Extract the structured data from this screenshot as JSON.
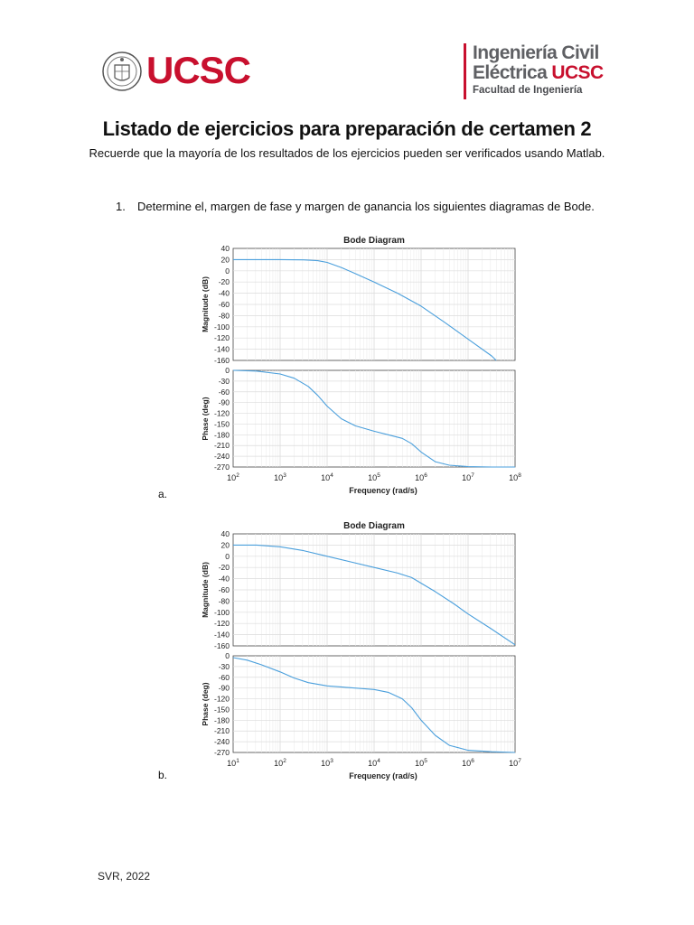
{
  "header": {
    "left_logo_text": "UCSC",
    "right_brand_line1": "Ingeniería Civil",
    "right_brand_line2a": "Eléctrica",
    "right_brand_line2b": "UCSC",
    "right_brand_line3": "Facultad de Ingeniería"
  },
  "colors": {
    "brand_red": "#c8102e",
    "brand_gray": "#5f6064",
    "curve": "#4a9fdc",
    "grid": "#dddddd"
  },
  "document": {
    "title": "Listado de ejercicios para preparación de certamen 2",
    "subtitle": "Recuerde que la mayoría de los resultados de los ejercicios pueden ser verificados usando Matlab.",
    "question_number": "1.",
    "question_text": "Determine el, margen de fase y margen de ganancia los siguientes diagramas de Bode.",
    "label_a": "a.",
    "label_b": "b.",
    "footer": "SVR, 2022"
  },
  "chart_data": [
    {
      "type": "line",
      "title": "Bode Diagram",
      "xlabel": "Frequency  (rad/s)",
      "xscale": "log",
      "xlim_exp": [
        2,
        8
      ],
      "x_tick_labels": [
        "10^2",
        "10^3",
        "10^4",
        "10^5",
        "10^6",
        "10^7",
        "10^8"
      ],
      "magnitude": {
        "ylabel": "Magnitude (dB)",
        "ylim": [
          -160,
          40
        ],
        "yticks": [
          40,
          20,
          0,
          -20,
          -40,
          -60,
          -80,
          -100,
          -120,
          -140,
          -160
        ],
        "x_exp": [
          2,
          3,
          3.5,
          3.8,
          4,
          4.3,
          4.6,
          5,
          5.5,
          6,
          6.5,
          7,
          7.5,
          7.6
        ],
        "values": [
          20,
          20,
          19.5,
          18,
          15,
          6,
          -5,
          -20,
          -40,
          -63,
          -92,
          -122,
          -152,
          -160
        ]
      },
      "phase": {
        "ylabel": "Phase (deg)",
        "ylim": [
          -270,
          0
        ],
        "yticks": [
          0,
          -30,
          -60,
          -90,
          -120,
          -150,
          -180,
          -210,
          -240,
          -270
        ],
        "x_exp": [
          2,
          2.5,
          3,
          3.3,
          3.6,
          3.8,
          4,
          4.3,
          4.6,
          5,
          5.3,
          5.6,
          5.8,
          6,
          6.3,
          6.6,
          7,
          7.5,
          8
        ],
        "values": [
          0,
          -2,
          -10,
          -22,
          -45,
          -70,
          -100,
          -135,
          -155,
          -170,
          -180,
          -190,
          -205,
          -228,
          -255,
          -265,
          -269,
          -270,
          -270
        ]
      },
      "grid": true
    },
    {
      "type": "line",
      "title": "Bode Diagram",
      "xlabel": "Frequency  (rad/s)",
      "xscale": "log",
      "xlim_exp": [
        1,
        7
      ],
      "x_tick_labels": [
        "10^1",
        "10^2",
        "10^3",
        "10^4",
        "10^5",
        "10^6",
        "10^7"
      ],
      "magnitude": {
        "ylabel": "Magnitude (dB)",
        "ylim": [
          -160,
          40
        ],
        "yticks": [
          40,
          20,
          0,
          -20,
          -40,
          -60,
          -80,
          -100,
          -120,
          -140,
          -160
        ],
        "x_exp": [
          1,
          1.5,
          2,
          2.5,
          3,
          3.5,
          4,
          4.5,
          4.8,
          5,
          5.3,
          5.7,
          6,
          6.5,
          7
        ],
        "values": [
          20,
          20,
          17,
          10,
          0,
          -10,
          -20,
          -30,
          -38,
          -48,
          -63,
          -85,
          -103,
          -130,
          -158
        ]
      },
      "phase": {
        "ylabel": "Phase (deg)",
        "ylim": [
          -270,
          0
        ],
        "yticks": [
          0,
          -30,
          -60,
          -90,
          -120,
          -150,
          -180,
          -210,
          -240,
          -270
        ],
        "x_exp": [
          1,
          1.3,
          1.6,
          2,
          2.3,
          2.6,
          3,
          3.5,
          4,
          4.3,
          4.6,
          4.8,
          5,
          5.3,
          5.6,
          6,
          6.5,
          7
        ],
        "values": [
          -5,
          -12,
          -25,
          -45,
          -62,
          -75,
          -84,
          -89,
          -94,
          -102,
          -120,
          -145,
          -180,
          -222,
          -250,
          -264,
          -268,
          -270
        ]
      },
      "grid": true
    }
  ]
}
